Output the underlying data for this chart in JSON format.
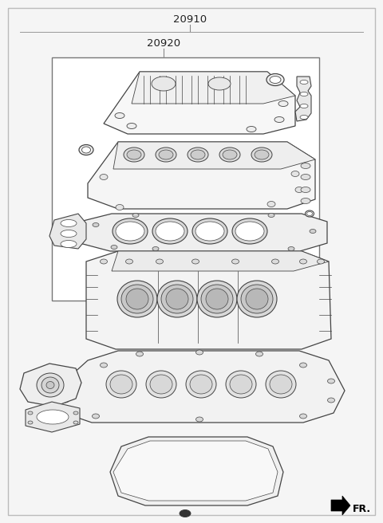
{
  "label_20910": "20910",
  "label_20920": "20920",
  "fr_label": "FR.",
  "bg_color": "#f5f5f5",
  "white": "#ffffff",
  "line_color": "#444444",
  "light_gray": "#e8e8e8",
  "mid_gray": "#d0d0d0",
  "dark_fill": "#c0c0c0",
  "box_line": "#888888"
}
